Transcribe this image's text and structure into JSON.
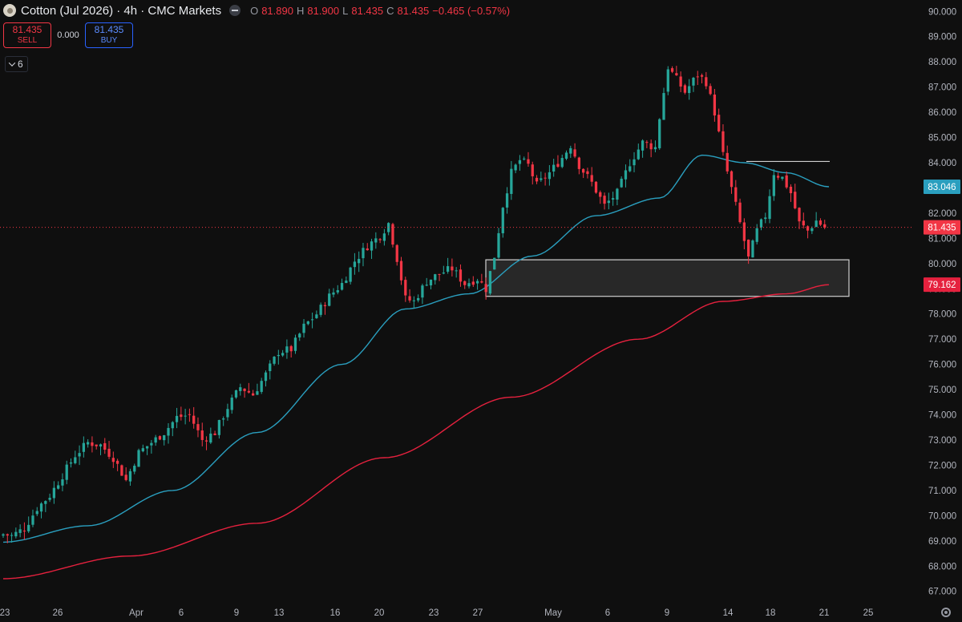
{
  "header": {
    "title": "Cotton (Jul 2026) · 4h · CMC Markets",
    "ohlc": [
      {
        "label": "O",
        "value": "81.890"
      },
      {
        "label": "H",
        "value": "81.900"
      },
      {
        "label": "L",
        "value": "81.435"
      },
      {
        "label": "C",
        "value": "81.435"
      }
    ],
    "change": "−0.465 (−0.57%)"
  },
  "trade": {
    "sell_price": "81.435",
    "sell_label": "SELL",
    "spread": "0.000",
    "buy_price": "81.435",
    "buy_label": "BUY"
  },
  "indicators_toggle": {
    "count": "6"
  },
  "colors": {
    "background": "#0f0f0f",
    "up": "#26a69a",
    "down": "#f23645",
    "ma_fast": "#2a9fbf",
    "ma_slow": "#e5213e",
    "axis_text": "#b2b5be"
  },
  "chart_data": {
    "type": "candlestick",
    "timeframe": "4h",
    "x_tick_labels": [
      "23",
      "26",
      "Apr",
      "6",
      "9",
      "13",
      "16",
      "20",
      "23",
      "27",
      "May",
      "6",
      "9",
      "14",
      "18",
      "21",
      "25"
    ],
    "y_tick_labels": [
      "67.000",
      "68.000",
      "69.000",
      "70.000",
      "71.000",
      "72.000",
      "73.000",
      "74.000",
      "75.000",
      "76.000",
      "77.000",
      "78.000",
      "79.000",
      "80.000",
      "81.000",
      "82.000",
      "83.000",
      "84.000",
      "85.000",
      "86.000",
      "87.000",
      "88.000",
      "89.000",
      "90.000"
    ],
    "ylim": [
      66.8,
      90.2
    ],
    "grid": false,
    "last_price": 81.435,
    "series_labels": [
      {
        "name": "ma_fast_value",
        "value": "83.046",
        "numeric": 83.046,
        "color": "#2a9fbf"
      },
      {
        "name": "last_price",
        "value": "81.435",
        "numeric": 81.435,
        "color": "#f23645"
      },
      {
        "name": "ma_slow_value",
        "value": "79.162",
        "numeric": 79.162,
        "color": "#e5213e"
      }
    ],
    "waypoints": [
      [
        0,
        69.3
      ],
      [
        3,
        69.2
      ],
      [
        6,
        69.5
      ],
      [
        9,
        70.3
      ],
      [
        12,
        70.8
      ],
      [
        15,
        71.6
      ],
      [
        18,
        72.4
      ],
      [
        21,
        72.9
      ],
      [
        24,
        72.8
      ],
      [
        27,
        72.3
      ],
      [
        30,
        71.4
      ],
      [
        33,
        72.5
      ],
      [
        36,
        72.9
      ],
      [
        39,
        73.3
      ],
      [
        42,
        73.9
      ],
      [
        45,
        74.0
      ],
      [
        48,
        73.0
      ],
      [
        51,
        73.3
      ],
      [
        54,
        74.3
      ],
      [
        57,
        75.1
      ],
      [
        60,
        74.8
      ],
      [
        63,
        75.6
      ],
      [
        66,
        76.5
      ],
      [
        69,
        76.6
      ],
      [
        72,
        77.5
      ],
      [
        75,
        78.0
      ],
      [
        78,
        78.7
      ],
      [
        81,
        79.2
      ],
      [
        84,
        80.1
      ],
      [
        87,
        80.7
      ],
      [
        90,
        81.1
      ],
      [
        92,
        81.6
      ],
      [
        94,
        80.2
      ],
      [
        96,
        78.6
      ],
      [
        98,
        78.5
      ],
      [
        101,
        79.3
      ],
      [
        104,
        79.6
      ],
      [
        107,
        79.8
      ],
      [
        110,
        79.2
      ],
      [
        113,
        79.4
      ],
      [
        115,
        79.0
      ],
      [
        117,
        80.3
      ],
      [
        119,
        82.3
      ],
      [
        121,
        83.6
      ],
      [
        123,
        84.1
      ],
      [
        125,
        83.9
      ],
      [
        127,
        83.1
      ],
      [
        130,
        83.6
      ],
      [
        133,
        84.2
      ],
      [
        135,
        84.7
      ],
      [
        137,
        83.9
      ],
      [
        140,
        83.2
      ],
      [
        143,
        82.3
      ],
      [
        146,
        82.8
      ],
      [
        149,
        84.0
      ],
      [
        152,
        84.8
      ],
      [
        155,
        84.6
      ],
      [
        156,
        85.8
      ],
      [
        158,
        87.8
      ],
      [
        160,
        87.3
      ],
      [
        162,
        86.8
      ],
      [
        165,
        87.5
      ],
      [
        167,
        87.2
      ],
      [
        169,
        86.0
      ],
      [
        171,
        84.3
      ],
      [
        174,
        82.3
      ],
      [
        177,
        80.2
      ],
      [
        179,
        81.3
      ],
      [
        181,
        81.9
      ],
      [
        183,
        83.6
      ],
      [
        185,
        83.4
      ],
      [
        187,
        82.8
      ],
      [
        189,
        81.6
      ],
      [
        191,
        81.3
      ],
      [
        193,
        81.7
      ],
      [
        195,
        81.435
      ]
    ],
    "candle_count": 195,
    "overlays": {
      "ma_fast": {
        "start": 68.95,
        "end": 83.046
      },
      "ma_slow": {
        "start": 67.5,
        "end": 79.162
      },
      "zone": {
        "top": 80.15,
        "bottom": 78.7
      },
      "resistance_line": {
        "price": 84.05
      }
    }
  }
}
